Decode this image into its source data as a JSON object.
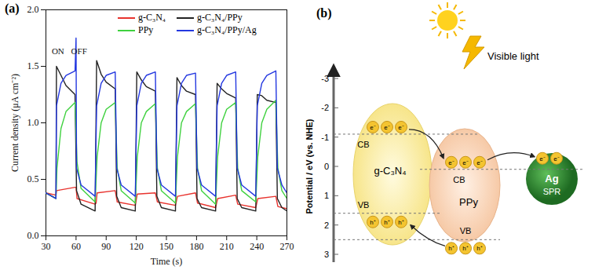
{
  "chart_data": {
    "type": "line",
    "title": "(a)",
    "xlabel": "Time (s)",
    "ylabel": "Current density (μA cm⁻²)",
    "xlim": [
      30,
      270
    ],
    "xticks": [
      30,
      60,
      90,
      120,
      150,
      180,
      210,
      240,
      270
    ],
    "ylim": [
      0,
      2
    ],
    "yticks": [
      {
        "value": 0,
        "label": "0.0"
      },
      {
        "value": 0.5,
        "label": "0.5"
      },
      {
        "value": 1,
        "label": "1.0"
      },
      {
        "value": 1.5,
        "label": "1.5"
      },
      {
        "value": 2,
        "label": "2.0"
      }
    ],
    "grid": false,
    "legend": "top",
    "series": [
      {
        "name": "g-C₃N₄",
        "color": "#e8332e",
        "x": [
          30,
          40,
          40.5,
          59,
          60,
          61,
          79,
          80,
          81,
          99,
          101,
          119,
          121,
          139,
          141,
          159,
          161,
          179,
          181,
          199,
          201,
          219,
          221,
          239,
          241,
          259,
          261,
          270
        ],
        "values": [
          0.38,
          0.36,
          0.4,
          0.43,
          0.43,
          0.33,
          0.28,
          0.29,
          0.38,
          0.4,
          0.3,
          0.27,
          0.37,
          0.38,
          0.3,
          0.27,
          0.35,
          0.38,
          0.29,
          0.25,
          0.33,
          0.36,
          0.28,
          0.25,
          0.33,
          0.35,
          0.26,
          0.24
        ]
      },
      {
        "name": "g-C₃N₄/PPy",
        "color": "#222222",
        "x": [
          30,
          40,
          40.5,
          45,
          50,
          59,
          60.5,
          65,
          79,
          80.5,
          85,
          90,
          99,
          100.5,
          105,
          119,
          120.5,
          125,
          130,
          139,
          140.5,
          145,
          159,
          160.5,
          165,
          170,
          179,
          180.5,
          185,
          199,
          200.5,
          205,
          210,
          219,
          220.5,
          225,
          239,
          240.5,
          245,
          250,
          259,
          260.5,
          265,
          270
        ],
        "values": [
          0.38,
          0.33,
          1.5,
          1.42,
          1.33,
          1.25,
          0.4,
          0.28,
          0.22,
          1.55,
          1.43,
          1.36,
          1.3,
          0.35,
          0.25,
          0.22,
          1.45,
          1.38,
          1.32,
          1.28,
          0.35,
          0.25,
          0.22,
          1.4,
          1.33,
          1.28,
          1.25,
          0.33,
          0.25,
          0.22,
          1.35,
          1.3,
          1.26,
          1.22,
          0.33,
          0.25,
          0.22,
          1.25,
          1.24,
          1.2,
          1.18,
          0.33,
          0.25,
          0.22
        ]
      },
      {
        "name": "PPy",
        "color": "#3fd13f",
        "x": [
          30,
          40,
          41,
          45,
          50,
          59,
          61,
          65,
          79,
          81,
          85,
          90,
          99,
          101,
          105,
          119,
          121,
          125,
          130,
          139,
          141,
          145,
          159,
          161,
          165,
          170,
          179,
          181,
          185,
          199,
          201,
          205,
          210,
          219,
          221,
          225,
          239,
          241,
          245,
          250,
          259,
          261,
          265,
          270
        ],
        "values": [
          0.38,
          0.33,
          0.6,
          0.95,
          1.1,
          1.18,
          0.65,
          0.42,
          0.3,
          0.7,
          1.0,
          1.12,
          1.18,
          0.6,
          0.4,
          0.29,
          0.7,
          1.0,
          1.1,
          1.17,
          0.6,
          0.4,
          0.29,
          0.7,
          1.0,
          1.1,
          1.17,
          0.6,
          0.4,
          0.28,
          0.7,
          1.0,
          1.12,
          1.18,
          0.6,
          0.4,
          0.3,
          0.7,
          1.0,
          1.12,
          1.2,
          0.6,
          0.4,
          0.33
        ]
      },
      {
        "name": "g-C₃N₄/PPy/Ag",
        "color": "#2438e0",
        "x": [
          30,
          40,
          40.5,
          45,
          50,
          59,
          60,
          60.5,
          65,
          79,
          80.5,
          85,
          90,
          99,
          100.5,
          105,
          119,
          120.5,
          125,
          130,
          139,
          140.5,
          145,
          159,
          160.5,
          165,
          170,
          179,
          180.5,
          185,
          199,
          200.5,
          205,
          210,
          219,
          220.5,
          225,
          239,
          240.5,
          245,
          250,
          259,
          260.5,
          265,
          270
        ],
        "values": [
          0.38,
          0.33,
          1.15,
          1.35,
          1.42,
          1.46,
          1.75,
          0.6,
          0.45,
          0.35,
          1.15,
          1.35,
          1.42,
          1.45,
          0.6,
          0.45,
          0.35,
          1.15,
          1.35,
          1.42,
          1.45,
          0.6,
          0.45,
          0.35,
          1.15,
          1.35,
          1.42,
          1.44,
          0.6,
          0.45,
          0.35,
          1.15,
          1.35,
          1.42,
          1.45,
          0.6,
          0.45,
          0.35,
          1.15,
          1.35,
          1.42,
          1.46,
          0.6,
          0.45,
          0.38
        ]
      }
    ],
    "annotations": [
      {
        "text": "ON",
        "x": 42,
        "y": 1.63
      },
      {
        "text": "OFF",
        "x": 63,
        "y": 1.63
      }
    ]
  },
  "diagram": {
    "title": "(b)",
    "light_label": "Visible light",
    "axis": {
      "label": "Potential / eV (vs. NHE)",
      "ticks": [
        -3,
        -2,
        -1,
        0,
        1,
        2,
        3
      ]
    },
    "materials": [
      {
        "label": "g-C₃N₄",
        "cb": {
          "label": "CB",
          "value": -1.1
        },
        "vb": {
          "label": "VB",
          "value": 1.6
        },
        "electron": "e⁻",
        "hole": "h⁺"
      },
      {
        "label": "PPy",
        "cb": {
          "label": "CB",
          "value": 0.1
        },
        "vb": {
          "label": "VB",
          "value": 2.5
        },
        "electron": "e⁻",
        "hole": "h⁺"
      },
      {
        "label": "Ag",
        "sublabel": "SPR",
        "electron": "e⁻"
      }
    ]
  }
}
